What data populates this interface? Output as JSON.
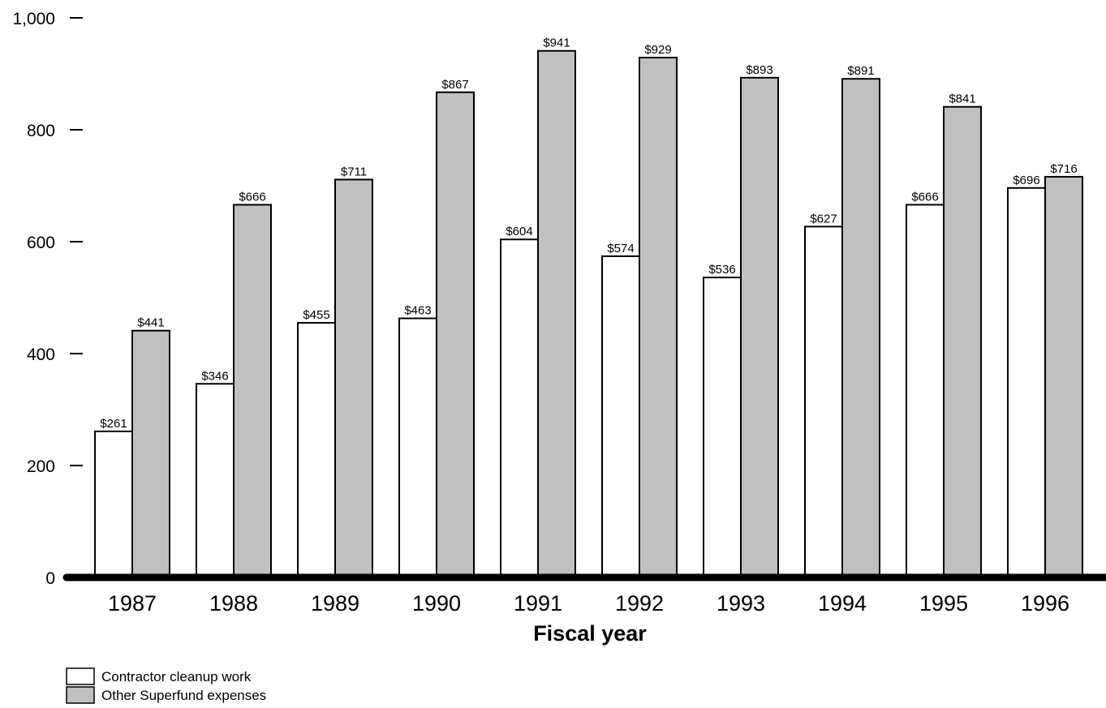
{
  "chart_data": {
    "type": "bar",
    "title": "",
    "xlabel": "Fiscal year",
    "ylabel": "",
    "categories": [
      "1987",
      "1988",
      "1989",
      "1990",
      "1991",
      "1992",
      "1993",
      "1994",
      "1995",
      "1996"
    ],
    "series": [
      {
        "name": "Contractor cleanup work",
        "color": "#ffffff",
        "values": [
          261,
          346,
          455,
          463,
          604,
          574,
          536,
          627,
          666,
          696
        ],
        "labels": [
          "$261",
          "$346",
          "$455",
          "$463",
          "$604",
          "$574",
          "$536",
          "$627",
          "$666",
          "$696"
        ]
      },
      {
        "name": "Other Superfund expenses",
        "color": "#c0c0c0",
        "values": [
          441,
          666,
          711,
          867,
          941,
          929,
          893,
          891,
          841,
          716
        ],
        "labels": [
          "$441",
          "$666",
          "$711",
          "$867",
          "$941",
          "$929",
          "$893",
          "$891",
          "$841",
          "$716"
        ]
      }
    ],
    "ylim": [
      0,
      1000
    ],
    "yticks": [
      0,
      200,
      400,
      600,
      800,
      1000
    ],
    "ytick_labels": [
      "0",
      "200",
      "400",
      "600",
      "800",
      "1,000"
    ],
    "grid": false,
    "legend_position": "bottom-left"
  }
}
